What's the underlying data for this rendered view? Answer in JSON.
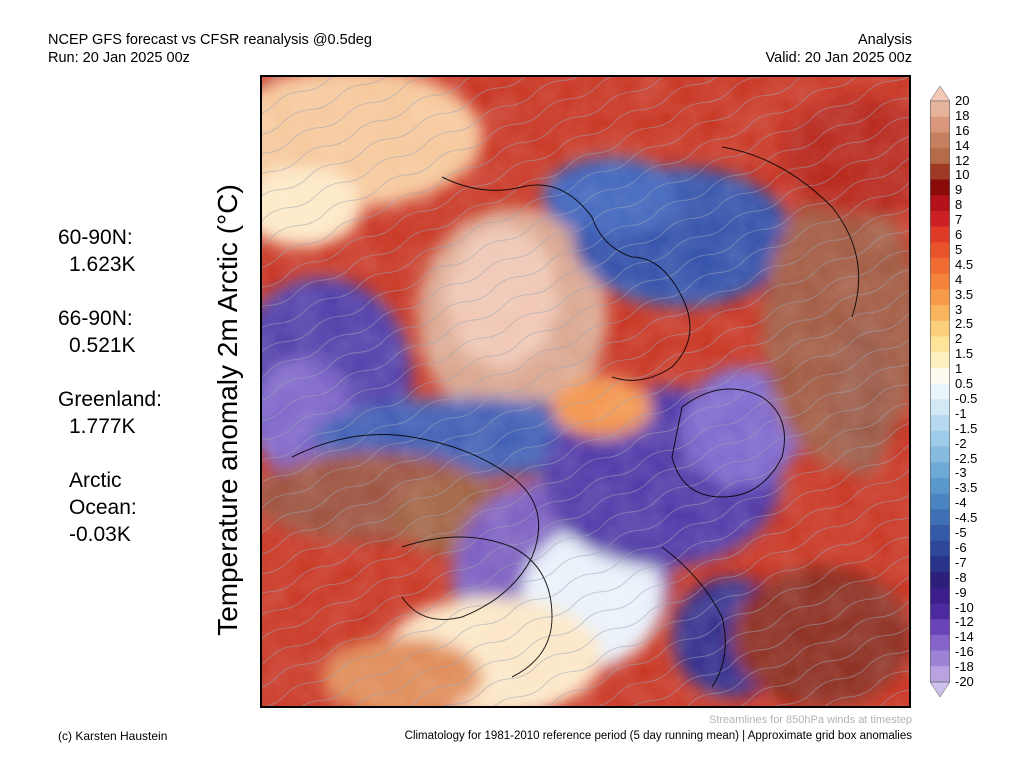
{
  "header": {
    "title_line": "NCEP GFS forecast vs CFSR reanalysis @0.5deg",
    "run_line": "Run: 20 Jan 2025 00z",
    "analysis_label": "Analysis",
    "valid_line": "Valid: 20 Jan 2025 00z"
  },
  "stats": [
    {
      "label": "60-90N:",
      "value": "1.623K"
    },
    {
      "label": "66-90N:",
      "value": "0.521K"
    },
    {
      "label": "Greenland:",
      "value": "1.777K"
    },
    {
      "label": "Arctic\nOcean:",
      "value": "-0.03K"
    }
  ],
  "axis_title": "Temperature anomaly 2m Arctic (°C)",
  "colorbar": {
    "ticks": [
      "20",
      "18",
      "16",
      "14",
      "12",
      "10",
      "9",
      "8",
      "7",
      "6",
      "5",
      "4.5",
      "4",
      "3.5",
      "3",
      "2.5",
      "2",
      "1.5",
      "1",
      "0.5",
      "-0.5",
      "-1",
      "-1.5",
      "-2",
      "-2.5",
      "-3",
      "-3.5",
      "-4",
      "-4.5",
      "-5",
      "-6",
      "-7",
      "-8",
      "-9",
      "-10",
      "-12",
      "-14",
      "-16",
      "-18",
      "-20"
    ],
    "colors": [
      "#f5c9b8",
      "#e8b39b",
      "#d9987d",
      "#c7805f",
      "#b56a4a",
      "#9e3a24",
      "#8b0a0a",
      "#b3121a",
      "#cc1f24",
      "#de3a26",
      "#e9532c",
      "#ef6b31",
      "#f4823b",
      "#f79a4a",
      "#fab55f",
      "#fccf7a",
      "#fde49a",
      "#fef1bf",
      "#fefaf0",
      "#eaf4fb",
      "#d2e8f5",
      "#b7d9ef",
      "#9ecbe7",
      "#86bbdf",
      "#6eaad6",
      "#5a98cc",
      "#4a84c1",
      "#3f70b5",
      "#355ba8",
      "#2e479a",
      "#2a338a",
      "#2b1f7a",
      "#3b1e8a",
      "#4e2aa0",
      "#6a43b8",
      "#8563c9",
      "#9e82d6",
      "#b8a2e2",
      "#cdbfee"
    ]
  },
  "footer": {
    "streamlines_note": "Streamlines for 850hPa winds at timestep",
    "credit": "(c) Karsten Haustein",
    "climatology": "Climatology for 1981-2010 reference period (5 day running mean) | Approximate grid box anomalies"
  }
}
